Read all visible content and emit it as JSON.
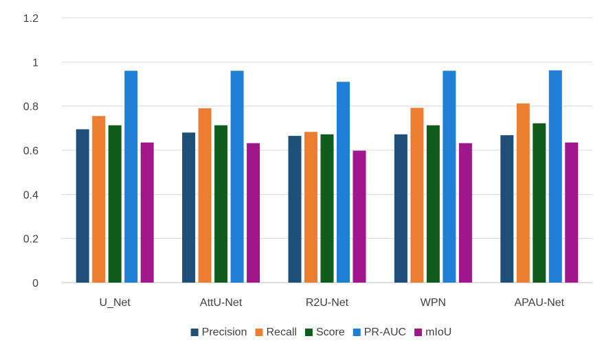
{
  "chart_data": {
    "type": "bar",
    "title": "",
    "xlabel": "",
    "ylabel": "",
    "categories": [
      "U_Net",
      "AttU-Net",
      "R2U-Net",
      "WPN",
      "APAU-Net"
    ],
    "ylim": [
      0,
      1.2
    ],
    "yticks": [
      "0",
      "0.2",
      "0.4",
      "0.6",
      "0.8",
      "1",
      "1.2"
    ],
    "ytick_values": [
      0,
      0.2,
      0.4,
      0.6,
      0.8,
      1.0,
      1.2
    ],
    "grid": true,
    "legend_position": "bottom",
    "series": [
      {
        "name": "Precision",
        "color": "#1f4e79",
        "values": [
          0.695,
          0.68,
          0.665,
          0.672,
          0.668
        ]
      },
      {
        "name": "Recall",
        "color": "#ed7d31",
        "values": [
          0.755,
          0.79,
          0.683,
          0.792,
          0.812
        ]
      },
      {
        "name": "Score",
        "color": "#0f5c1c",
        "values": [
          0.713,
          0.713,
          0.672,
          0.713,
          0.722
        ]
      },
      {
        "name": "PR-AUC",
        "color": "#1f7fd4",
        "values": [
          0.96,
          0.96,
          0.91,
          0.96,
          0.962
        ]
      },
      {
        "name": "mIoU",
        "color": "#a0178c",
        "values": [
          0.635,
          0.632,
          0.598,
          0.632,
          0.635
        ]
      }
    ]
  }
}
